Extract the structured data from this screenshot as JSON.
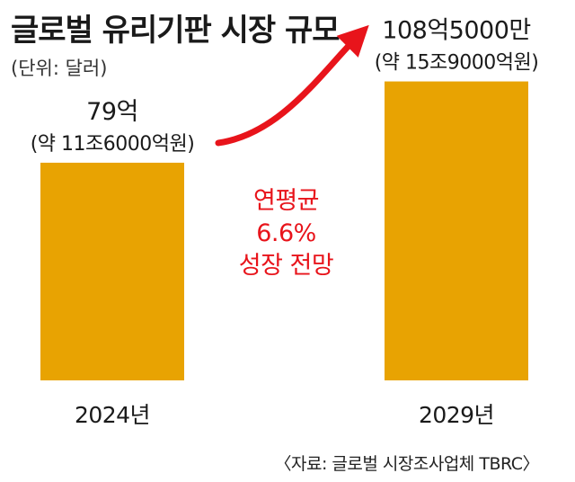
{
  "title": "글로벌 유리기판 시장 규모",
  "unit_label": "(단위: 달러)",
  "source": "〈자료: 글로벌 시장조사업체 TBRC〉",
  "colors": {
    "bar": "#E8A302",
    "arrow": "#E8141B",
    "annotation": "#E8141B"
  },
  "chart_data": {
    "type": "bar",
    "categories": [
      "2024년",
      "2029년"
    ],
    "values": [
      7.9,
      10.85
    ],
    "value_unit": "billion USD",
    "data_labels": [
      {
        "main": "79억",
        "sub": "(약 11조6000억원)"
      },
      {
        "main": "108억5000만",
        "sub": "(약 15조9000억원)"
      }
    ],
    "annotation": [
      "연평균",
      "6.6%",
      "성장 전망"
    ],
    "ylim": [
      0,
      12.5
    ],
    "grid": false,
    "title": "글로벌 유리기판 시장 규모",
    "xlabel": "",
    "ylabel": ""
  }
}
